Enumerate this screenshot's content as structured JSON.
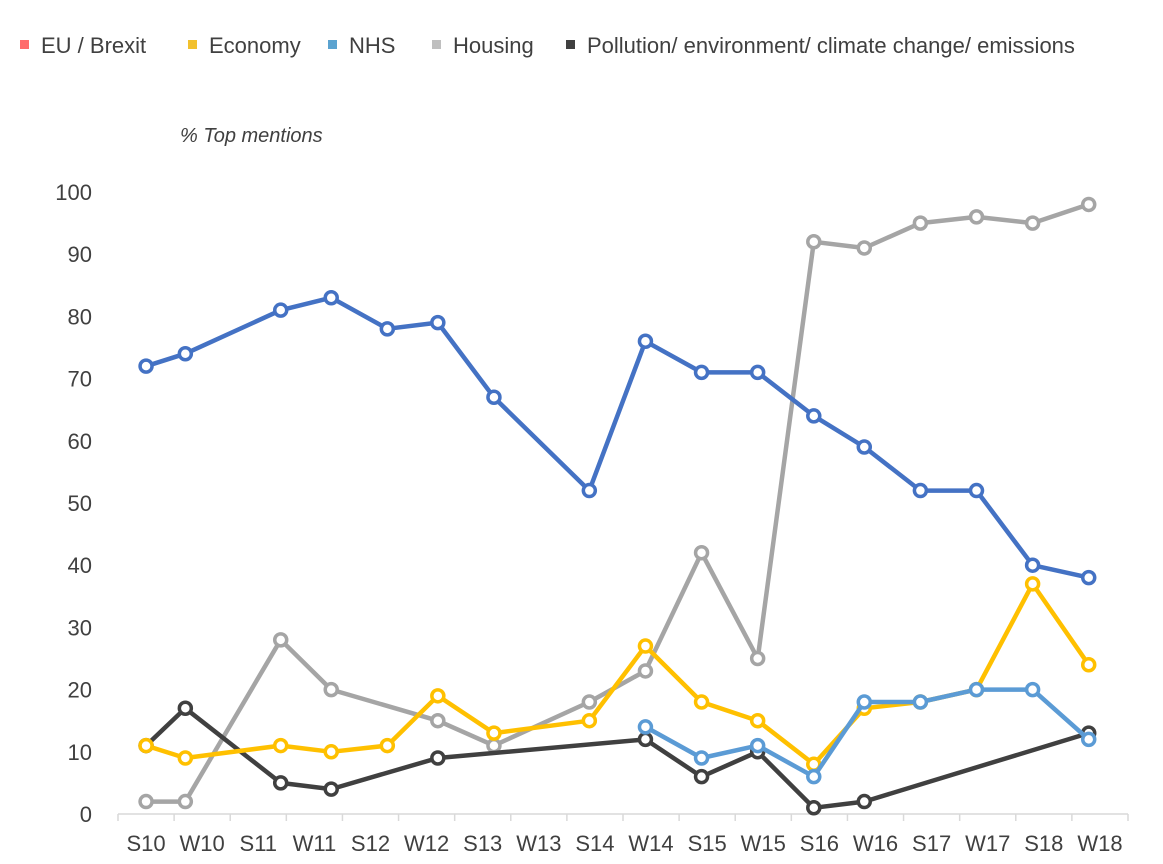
{
  "chart_data": {
    "type": "line",
    "ylabel": "% Top mentions",
    "ylim": [
      0,
      100
    ],
    "yticks": [
      0,
      10,
      20,
      30,
      40,
      50,
      60,
      70,
      80,
      90,
      100
    ],
    "grid": false,
    "legend_position": "top",
    "categories": [
      "S10",
      "W10",
      "S11",
      "W11",
      "S12",
      "W12",
      "S13",
      "W13",
      "S14",
      "W14",
      "S15",
      "W15",
      "S16",
      "W16",
      "S17",
      "W17",
      "S18",
      "W18"
    ],
    "series": [
      {
        "name": "EU / Brexit",
        "legend_color": "#ff6b6b",
        "color": "#4472c4",
        "points": [
          {
            "x": 0.0,
            "y": 72
          },
          {
            "x": 0.7,
            "y": 74
          },
          {
            "x": 2.4,
            "y": 81
          },
          {
            "x": 3.3,
            "y": 83
          },
          {
            "x": 4.3,
            "y": 78
          },
          {
            "x": 5.2,
            "y": 79
          },
          {
            "x": 6.2,
            "y": 67
          },
          {
            "x": 7.9,
            "y": 52
          },
          {
            "x": 8.9,
            "y": 76
          },
          {
            "x": 9.9,
            "y": 71
          },
          {
            "x": 10.9,
            "y": 71
          },
          {
            "x": 11.9,
            "y": 64
          },
          {
            "x": 12.8,
            "y": 59
          },
          {
            "x": 13.8,
            "y": 52
          },
          {
            "x": 14.8,
            "y": 52
          },
          {
            "x": 15.8,
            "y": 40
          },
          {
            "x": 16.8,
            "y": 38
          }
        ]
      },
      {
        "name": "Economy",
        "legend_color": "#f2c12e",
        "color": "#ffc000",
        "points": [
          {
            "x": 0.0,
            "y": 11
          },
          {
            "x": 0.7,
            "y": 9
          },
          {
            "x": 2.4,
            "y": 11
          },
          {
            "x": 3.3,
            "y": 10
          },
          {
            "x": 4.3,
            "y": 11
          },
          {
            "x": 5.2,
            "y": 19
          },
          {
            "x": 6.2,
            "y": 13
          },
          {
            "x": 7.9,
            "y": 15
          },
          {
            "x": 8.9,
            "y": 27
          },
          {
            "x": 9.9,
            "y": 18
          },
          {
            "x": 10.9,
            "y": 15
          },
          {
            "x": 11.9,
            "y": 8
          },
          {
            "x": 12.8,
            "y": 17
          },
          {
            "x": 13.8,
            "y": 18
          },
          {
            "x": 14.8,
            "y": 20
          },
          {
            "x": 15.8,
            "y": 37
          },
          {
            "x": 16.8,
            "y": 24
          }
        ]
      },
      {
        "name": "NHS",
        "legend_color": "#5ba3d0",
        "color": "#5b9bd5",
        "points": [
          {
            "x": 8.9,
            "y": 14
          },
          {
            "x": 9.9,
            "y": 9
          },
          {
            "x": 10.9,
            "y": 11
          },
          {
            "x": 11.9,
            "y": 6
          },
          {
            "x": 12.8,
            "y": 18
          },
          {
            "x": 13.8,
            "y": 18
          },
          {
            "x": 14.8,
            "y": 20
          },
          {
            "x": 15.8,
            "y": 20
          },
          {
            "x": 16.8,
            "y": 12
          }
        ]
      },
      {
        "name": "Housing",
        "legend_color": "#bfbfbf",
        "color": "#a5a5a5",
        "points": [
          {
            "x": 0.0,
            "y": 2
          },
          {
            "x": 0.7,
            "y": 2
          },
          {
            "x": 2.4,
            "y": 28
          },
          {
            "x": 3.3,
            "y": 20
          },
          {
            "x": 5.2,
            "y": 15
          },
          {
            "x": 6.2,
            "y": 11
          },
          {
            "x": 7.9,
            "y": 18
          },
          {
            "x": 8.9,
            "y": 23
          },
          {
            "x": 9.9,
            "y": 42
          },
          {
            "x": 10.9,
            "y": 25
          },
          {
            "x": 11.9,
            "y": 92
          },
          {
            "x": 12.8,
            "y": 91
          },
          {
            "x": 13.8,
            "y": 95
          },
          {
            "x": 14.8,
            "y": 96
          },
          {
            "x": 15.8,
            "y": 95
          },
          {
            "x": 16.8,
            "y": 98
          }
        ]
      },
      {
        "name": "Pollution/ environment/ climate change/ emissions",
        "legend_color": "#404040",
        "color": "#404040",
        "points": [
          {
            "x": 0.0,
            "y": 11
          },
          {
            "x": 0.7,
            "y": 17
          },
          {
            "x": 2.4,
            "y": 5
          },
          {
            "x": 3.3,
            "y": 4
          },
          {
            "x": 5.2,
            "y": 9
          },
          {
            "x": 8.9,
            "y": 12
          },
          {
            "x": 9.9,
            "y": 6
          },
          {
            "x": 10.9,
            "y": 10
          },
          {
            "x": 11.9,
            "y": 1
          },
          {
            "x": 12.8,
            "y": 2
          },
          {
            "x": 16.8,
            "y": 13
          }
        ]
      }
    ]
  }
}
